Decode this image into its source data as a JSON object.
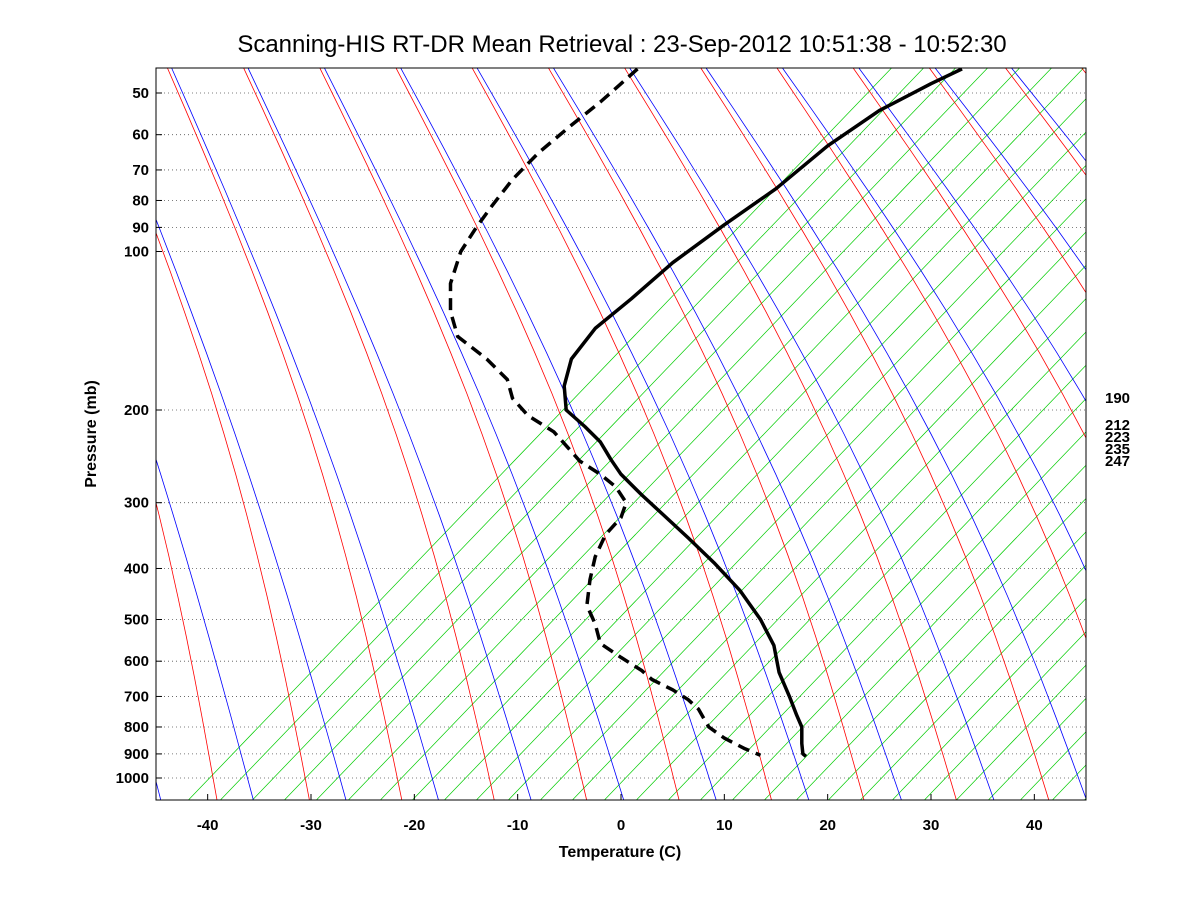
{
  "chart_data": {
    "type": "line",
    "title": "Scanning-HIS RT-DR Mean Retrieval : 23-Sep-2012 10:51:38 - 10:52:30",
    "xlabel": "Temperature (C)",
    "ylabel": "Pressure (mb)",
    "xlim": [
      -45,
      45
    ],
    "ylim": [
      1100,
      45
    ],
    "y_scale": "log",
    "grid": "horizontal dotted lines at pressure levels",
    "x_ticks": [
      -40,
      -30,
      -20,
      -10,
      0,
      10,
      20,
      30,
      40
    ],
    "y_ticks": [
      50,
      60,
      70,
      80,
      90,
      100,
      200,
      300,
      400,
      500,
      600,
      700,
      800,
      900,
      1000
    ],
    "right_labels": [
      "190",
      "212",
      "223",
      "235",
      "247"
    ],
    "colors": {
      "dry_adiabat": "#ff0000",
      "moist_adiabat": "#0000ff",
      "mixing_ratio": "#00cc00",
      "profile": "#000000",
      "grid": "#555555"
    },
    "series": [
      {
        "style": "solid",
        "points": [
          [
            33,
            45
          ],
          [
            30,
            48
          ],
          [
            25,
            54
          ],
          [
            20,
            63
          ],
          [
            15,
            76
          ],
          [
            10,
            89
          ],
          [
            5,
            105
          ],
          [
            1,
            123
          ],
          [
            -2.5,
            140
          ],
          [
            -4.8,
            160
          ],
          [
            -5.5,
            180
          ],
          [
            -5.3,
            200
          ],
          [
            -3.5,
            215
          ],
          [
            -2,
            230
          ],
          [
            -1.6,
            237
          ],
          [
            -1,
            248
          ],
          [
            0,
            265
          ],
          [
            2,
            290
          ],
          [
            4,
            315
          ],
          [
            6.5,
            350
          ],
          [
            9,
            390
          ],
          [
            11.5,
            440
          ],
          [
            13.5,
            500
          ],
          [
            14.8,
            560
          ],
          [
            15.3,
            630
          ],
          [
            16.3,
            700
          ],
          [
            17,
            760
          ],
          [
            17.5,
            800
          ],
          [
            17.5,
            860
          ],
          [
            17.6,
            900
          ],
          [
            17.9,
            910
          ]
        ]
      },
      {
        "style": "dashed",
        "points": [
          [
            1.6,
            45
          ],
          [
            0,
            48
          ],
          [
            -2,
            52
          ],
          [
            -5,
            58
          ],
          [
            -8,
            65
          ],
          [
            -10.5,
            73
          ],
          [
            -12.5,
            82
          ],
          [
            -14,
            90
          ],
          [
            -15.5,
            100
          ],
          [
            -16.5,
            115
          ],
          [
            -16.5,
            130
          ],
          [
            -15.8,
            145
          ],
          [
            -13,
            160
          ],
          [
            -11,
            175
          ],
          [
            -10.5,
            190
          ],
          [
            -9,
            205
          ],
          [
            -6.5,
            220
          ],
          [
            -5.2,
            235
          ],
          [
            -4,
            250
          ],
          [
            -2,
            265
          ],
          [
            -0.5,
            280
          ],
          [
            0.5,
            300
          ],
          [
            0,
            320
          ],
          [
            -1.5,
            345
          ],
          [
            -2.5,
            380
          ],
          [
            -3,
            420
          ],
          [
            -3.3,
            470
          ],
          [
            -2.5,
            510
          ],
          [
            -2,
            555
          ],
          [
            0,
            590
          ],
          [
            2,
            625
          ],
          [
            3,
            650
          ],
          [
            5,
            680
          ],
          [
            6.5,
            710
          ],
          [
            7.5,
            740
          ],
          [
            8,
            770
          ],
          [
            8.5,
            800
          ],
          [
            10,
            840
          ],
          [
            12,
            880
          ],
          [
            13.5,
            905
          ]
        ]
      }
    ]
  }
}
